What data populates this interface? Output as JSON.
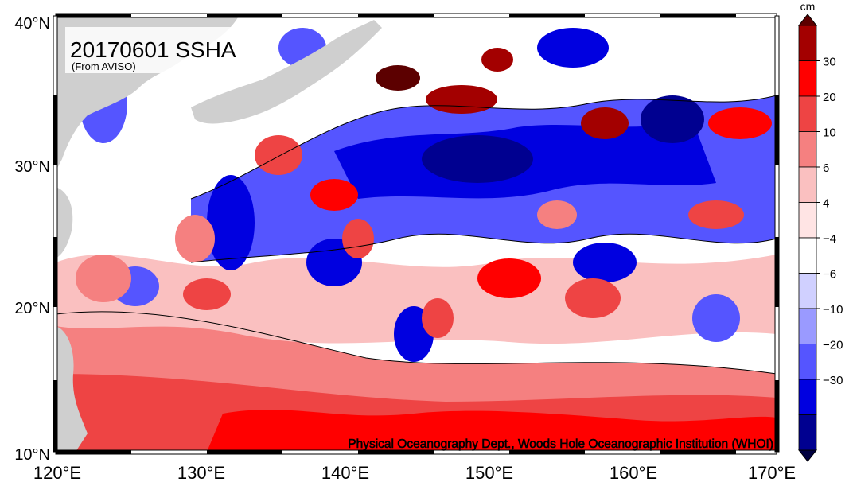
{
  "map": {
    "title": "20170601 SSHA",
    "subtitle": "(From AVISO)",
    "credit": "Physical Oceanography Dept., Woods Hole Oceanographic Institution (WHOI)",
    "lon_labels": [
      "120°E",
      "130°E",
      "140°E",
      "150°E",
      "160°E",
      "170°E"
    ],
    "lat_labels": [
      "40°N",
      "30°N",
      "20°N",
      "10°N"
    ],
    "land_color": "#cfcfcf"
  },
  "colorbar": {
    "unit": "cm",
    "labels": [
      "30",
      "20",
      "10",
      "6",
      "4",
      "−4",
      "−6",
      "−10",
      "−20",
      "−30"
    ],
    "colors": [
      "#5c0000",
      "#a30000",
      "#ff0000",
      "#ee4444",
      "#f58080",
      "#fac0c0",
      "#ffe4e4",
      "#ffffff",
      "#d0d0ff",
      "#9a9aff",
      "#5555ff",
      "#0000e0",
      "#000090",
      "#000040"
    ]
  }
}
